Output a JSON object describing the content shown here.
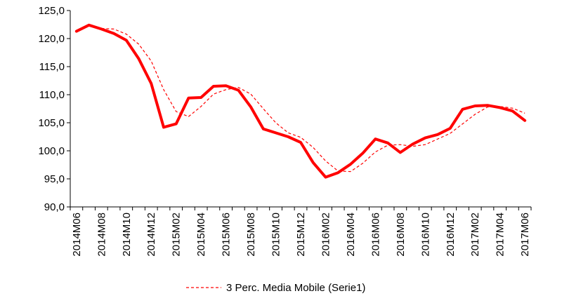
{
  "chart_data": {
    "type": "line",
    "x": [
      "2014M06",
      "2014M07",
      "2014M08",
      "2014M09",
      "2014M10",
      "2014M11",
      "2014M12",
      "2015M01",
      "2015M02",
      "2015M03",
      "2015M04",
      "2015M05",
      "2015M06",
      "2015M07",
      "2015M08",
      "2015M09",
      "2015M10",
      "2015M11",
      "2015M12",
      "2016M01",
      "2016M02",
      "2016M03",
      "2016M04",
      "2016M05",
      "2016M06",
      "2016M07",
      "2016M08",
      "2016M09",
      "2016M10",
      "2016M11",
      "2016M12",
      "2017M01",
      "2017M02",
      "2017M03",
      "2017M04",
      "2017M05",
      "2017M06"
    ],
    "x_tick_labels": [
      "2014M06",
      "2014M08",
      "2014M10",
      "2014M12",
      "2015M02",
      "2015M04",
      "2015M06",
      "2015M08",
      "2015M10",
      "2015M12",
      "2016M02",
      "2016M04",
      "2016M06",
      "2016M08",
      "2016M10",
      "2016M12",
      "2017M02",
      "2017M04",
      "2017M06"
    ],
    "ylim": [
      90,
      125
    ],
    "y_ticks": [
      "90,0",
      "95,0",
      "100,0",
      "105,0",
      "110,0",
      "115,0",
      "120,0",
      "125,0"
    ],
    "series": [
      {
        "color": "#ff0000",
        "style": "solid-thick",
        "values": [
          121.3,
          122.4,
          121.7,
          120.9,
          119.7,
          116.4,
          112.0,
          104.2,
          104.8,
          109.4,
          109.5,
          111.5,
          111.6,
          110.8,
          107.8,
          103.9,
          103.2,
          102.5,
          101.5,
          97.9,
          95.3,
          96.1,
          97.6,
          99.6,
          102.1,
          101.4,
          99.7,
          101.2,
          102.3,
          102.9,
          104.0,
          107.4,
          108.0,
          108.1,
          107.7,
          107.1,
          105.4
        ]
      },
      {
        "name": "3 Perc. Media Mobile (Serie1)",
        "color": "#ff0000",
        "style": "dashed",
        "values": [
          null,
          null,
          121.8,
          121.7,
          120.8,
          119.0,
          116.0,
          110.9,
          107.0,
          106.1,
          107.9,
          110.1,
          110.9,
          111.3,
          110.1,
          107.5,
          105.0,
          103.2,
          102.4,
          100.6,
          98.2,
          96.4,
          96.3,
          97.8,
          99.8,
          101.0,
          101.1,
          100.8,
          101.1,
          102.1,
          103.1,
          104.8,
          106.5,
          107.8,
          107.9,
          107.6,
          106.7
        ]
      }
    ],
    "legend": {
      "position": "bottom",
      "entries": [
        "3 Perc. Media Mobile (Serie1)"
      ]
    },
    "grid": false,
    "xlabel": "",
    "ylabel": "",
    "title": ""
  }
}
